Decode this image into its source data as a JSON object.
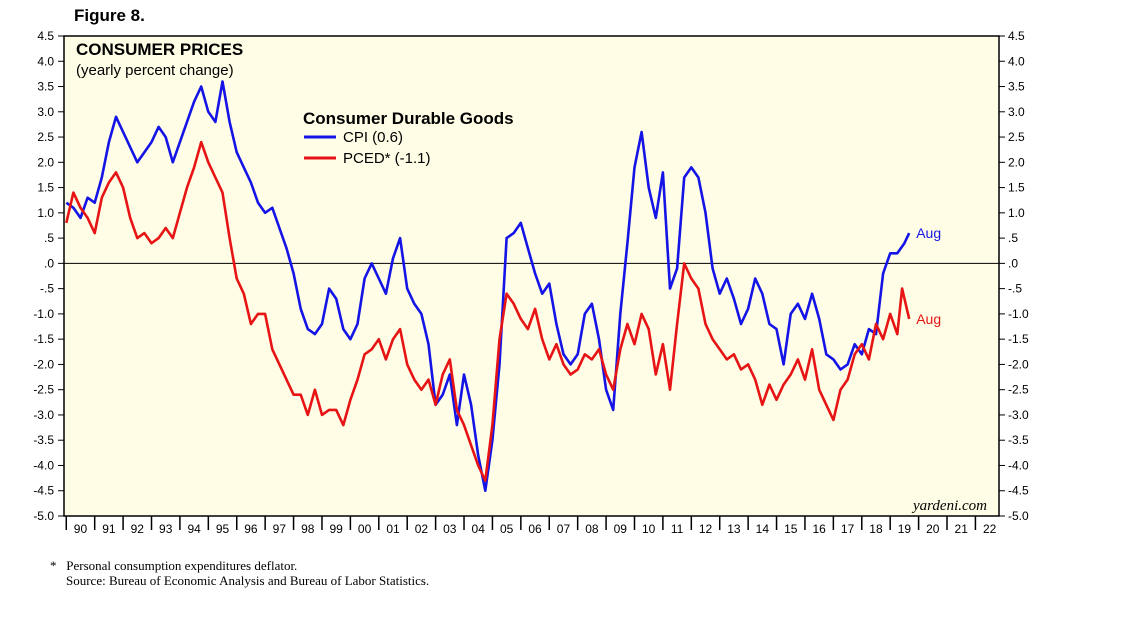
{
  "figure_label": "Figure 8.",
  "footnotes": {
    "marker": "*",
    "definition": "Personal consumption expenditures deflator.",
    "source": "Source: Bureau of Economic Analysis and Bureau of Labor Statistics."
  },
  "colors": {
    "background": "#fffde6",
    "cpi": "#1414e6",
    "pced": "#e61414",
    "axis": "#000000"
  },
  "chart_data": {
    "type": "line",
    "title": "CONSUMER PRICES",
    "subtitle": "(yearly percent change)",
    "legend_title": "Consumer Durable Goods",
    "watermark": "yardeni.com",
    "ylim": [
      -5.0,
      4.5
    ],
    "y_ticks": [
      -5.0,
      -4.5,
      -4.0,
      -3.5,
      -3.0,
      -2.5,
      -2.0,
      -1.5,
      -1.0,
      -0.5,
      0.0,
      0.5,
      1.0,
      1.5,
      2.0,
      2.5,
      3.0,
      3.5,
      4.0,
      4.5
    ],
    "y_tick_labels": [
      "-5.0",
      "-4.5",
      "-4.0",
      "-3.5",
      "-3.0",
      "-2.5",
      "-2.0",
      "-1.5",
      "-1.0",
      "-.5",
      ".0",
      ".5",
      "1.0",
      "1.5",
      "2.0",
      "2.5",
      "3.0",
      "3.5",
      "4.0",
      "4.5"
    ],
    "xlim": [
      1989.92,
      2022.83
    ],
    "x_tick_labels": [
      "90",
      "91",
      "92",
      "93",
      "94",
      "95",
      "96",
      "97",
      "98",
      "99",
      "00",
      "01",
      "02",
      "03",
      "04",
      "05",
      "06",
      "07",
      "08",
      "09",
      "10",
      "11",
      "12",
      "13",
      "14",
      "15",
      "16",
      "17",
      "18",
      "19",
      "20",
      "21",
      "22"
    ],
    "reference_line": 0.0,
    "series": [
      {
        "name": "CPI (0.6)",
        "color": "#1414e6",
        "end_label": "Aug",
        "points": [
          [
            1990.0,
            1.2
          ],
          [
            1990.25,
            1.1
          ],
          [
            1990.5,
            0.9
          ],
          [
            1990.75,
            1.3
          ],
          [
            1991.0,
            1.2
          ],
          [
            1991.25,
            1.7
          ],
          [
            1991.5,
            2.4
          ],
          [
            1991.75,
            2.9
          ],
          [
            1992.0,
            2.6
          ],
          [
            1992.25,
            2.3
          ],
          [
            1992.5,
            2.0
          ],
          [
            1992.75,
            2.2
          ],
          [
            1993.0,
            2.4
          ],
          [
            1993.25,
            2.7
          ],
          [
            1993.5,
            2.5
          ],
          [
            1993.75,
            2.0
          ],
          [
            1994.0,
            2.4
          ],
          [
            1994.25,
            2.8
          ],
          [
            1994.5,
            3.2
          ],
          [
            1994.75,
            3.5
          ],
          [
            1995.0,
            3.0
          ],
          [
            1995.25,
            2.8
          ],
          [
            1995.5,
            3.6
          ],
          [
            1995.75,
            2.8
          ],
          [
            1996.0,
            2.2
          ],
          [
            1996.25,
            1.9
          ],
          [
            1996.5,
            1.6
          ],
          [
            1996.75,
            1.2
          ],
          [
            1997.0,
            1.0
          ],
          [
            1997.25,
            1.1
          ],
          [
            1997.5,
            0.7
          ],
          [
            1997.75,
            0.3
          ],
          [
            1998.0,
            -0.2
          ],
          [
            1998.25,
            -0.9
          ],
          [
            1998.5,
            -1.3
          ],
          [
            1998.75,
            -1.4
          ],
          [
            1999.0,
            -1.2
          ],
          [
            1999.25,
            -0.5
          ],
          [
            1999.5,
            -0.7
          ],
          [
            1999.75,
            -1.3
          ],
          [
            2000.0,
            -1.5
          ],
          [
            2000.25,
            -1.2
          ],
          [
            2000.5,
            -0.3
          ],
          [
            2000.75,
            0.0
          ],
          [
            2001.0,
            -0.3
          ],
          [
            2001.25,
            -0.6
          ],
          [
            2001.5,
            0.1
          ],
          [
            2001.75,
            0.5
          ],
          [
            2002.0,
            -0.5
          ],
          [
            2002.25,
            -0.8
          ],
          [
            2002.5,
            -1.0
          ],
          [
            2002.75,
            -1.6
          ],
          [
            2003.0,
            -2.8
          ],
          [
            2003.25,
            -2.6
          ],
          [
            2003.5,
            -2.2
          ],
          [
            2003.75,
            -3.2
          ],
          [
            2004.0,
            -2.2
          ],
          [
            2004.25,
            -2.8
          ],
          [
            2004.5,
            -3.8
          ],
          [
            2004.75,
            -4.5
          ],
          [
            2005.0,
            -3.5
          ],
          [
            2005.25,
            -2.0
          ],
          [
            2005.5,
            0.5
          ],
          [
            2005.75,
            0.6
          ],
          [
            2006.0,
            0.8
          ],
          [
            2006.25,
            0.3
          ],
          [
            2006.5,
            -0.2
          ],
          [
            2006.75,
            -0.6
          ],
          [
            2007.0,
            -0.4
          ],
          [
            2007.25,
            -1.2
          ],
          [
            2007.5,
            -1.8
          ],
          [
            2007.75,
            -2.0
          ],
          [
            2008.0,
            -1.8
          ],
          [
            2008.25,
            -1.0
          ],
          [
            2008.5,
            -0.8
          ],
          [
            2008.75,
            -1.5
          ],
          [
            2009.0,
            -2.5
          ],
          [
            2009.25,
            -2.9
          ],
          [
            2009.5,
            -1.0
          ],
          [
            2009.75,
            0.4
          ],
          [
            2010.0,
            1.9
          ],
          [
            2010.25,
            2.6
          ],
          [
            2010.5,
            1.5
          ],
          [
            2010.75,
            0.9
          ],
          [
            2011.0,
            1.8
          ],
          [
            2011.25,
            -0.5
          ],
          [
            2011.5,
            -0.1
          ],
          [
            2011.75,
            1.7
          ],
          [
            2012.0,
            1.9
          ],
          [
            2012.25,
            1.7
          ],
          [
            2012.5,
            1.0
          ],
          [
            2012.75,
            -0.1
          ],
          [
            2013.0,
            -0.6
          ],
          [
            2013.25,
            -0.3
          ],
          [
            2013.5,
            -0.7
          ],
          [
            2013.75,
            -1.2
          ],
          [
            2014.0,
            -0.9
          ],
          [
            2014.25,
            -0.3
          ],
          [
            2014.5,
            -0.6
          ],
          [
            2014.75,
            -1.2
          ],
          [
            2015.0,
            -1.3
          ],
          [
            2015.25,
            -2.0
          ],
          [
            2015.5,
            -1.0
          ],
          [
            2015.75,
            -0.8
          ],
          [
            2016.0,
            -1.1
          ],
          [
            2016.25,
            -0.6
          ],
          [
            2016.5,
            -1.1
          ],
          [
            2016.75,
            -1.8
          ],
          [
            2017.0,
            -1.9
          ],
          [
            2017.25,
            -2.1
          ],
          [
            2017.5,
            -2.0
          ],
          [
            2017.75,
            -1.6
          ],
          [
            2018.0,
            -1.8
          ],
          [
            2018.25,
            -1.3
          ],
          [
            2018.5,
            -1.4
          ],
          [
            2018.75,
            -0.2
          ],
          [
            2019.0,
            0.2
          ],
          [
            2019.25,
            0.2
          ],
          [
            2019.5,
            0.4
          ],
          [
            2019.67,
            0.6
          ]
        ]
      },
      {
        "name": "PCED* (-1.1)",
        "color": "#e61414",
        "end_label": "Aug",
        "points": [
          [
            1990.0,
            0.8
          ],
          [
            1990.25,
            1.4
          ],
          [
            1990.5,
            1.1
          ],
          [
            1990.75,
            0.9
          ],
          [
            1991.0,
            0.6
          ],
          [
            1991.25,
            1.3
          ],
          [
            1991.5,
            1.6
          ],
          [
            1991.75,
            1.8
          ],
          [
            1992.0,
            1.5
          ],
          [
            1992.25,
            0.9
          ],
          [
            1992.5,
            0.5
          ],
          [
            1992.75,
            0.6
          ],
          [
            1993.0,
            0.4
          ],
          [
            1993.25,
            0.5
          ],
          [
            1993.5,
            0.7
          ],
          [
            1993.75,
            0.5
          ],
          [
            1994.0,
            1.0
          ],
          [
            1994.25,
            1.5
          ],
          [
            1994.5,
            1.9
          ],
          [
            1994.75,
            2.4
          ],
          [
            1995.0,
            2.0
          ],
          [
            1995.25,
            1.7
          ],
          [
            1995.5,
            1.4
          ],
          [
            1995.75,
            0.5
          ],
          [
            1996.0,
            -0.3
          ],
          [
            1996.25,
            -0.6
          ],
          [
            1996.5,
            -1.2
          ],
          [
            1996.75,
            -1.0
          ],
          [
            1997.0,
            -1.0
          ],
          [
            1997.25,
            -1.7
          ],
          [
            1997.5,
            -2.0
          ],
          [
            1997.75,
            -2.3
          ],
          [
            1998.0,
            -2.6
          ],
          [
            1998.25,
            -2.6
          ],
          [
            1998.5,
            -3.0
          ],
          [
            1998.75,
            -2.5
          ],
          [
            1999.0,
            -3.0
          ],
          [
            1999.25,
            -2.9
          ],
          [
            1999.5,
            -2.9
          ],
          [
            1999.75,
            -3.2
          ],
          [
            2000.0,
            -2.7
          ],
          [
            2000.25,
            -2.3
          ],
          [
            2000.5,
            -1.8
          ],
          [
            2000.75,
            -1.7
          ],
          [
            2001.0,
            -1.5
          ],
          [
            2001.25,
            -1.9
          ],
          [
            2001.5,
            -1.5
          ],
          [
            2001.75,
            -1.3
          ],
          [
            2002.0,
            -2.0
          ],
          [
            2002.25,
            -2.3
          ],
          [
            2002.5,
            -2.5
          ],
          [
            2002.75,
            -2.3
          ],
          [
            2003.0,
            -2.8
          ],
          [
            2003.25,
            -2.2
          ],
          [
            2003.5,
            -1.9
          ],
          [
            2003.75,
            -2.9
          ],
          [
            2004.0,
            -3.2
          ],
          [
            2004.25,
            -3.6
          ],
          [
            2004.5,
            -4.0
          ],
          [
            2004.75,
            -4.3
          ],
          [
            2005.0,
            -3.2
          ],
          [
            2005.25,
            -1.5
          ],
          [
            2005.5,
            -0.6
          ],
          [
            2005.75,
            -0.8
          ],
          [
            2006.0,
            -1.1
          ],
          [
            2006.25,
            -1.3
          ],
          [
            2006.5,
            -0.9
          ],
          [
            2006.75,
            -1.5
          ],
          [
            2007.0,
            -1.9
          ],
          [
            2007.25,
            -1.6
          ],
          [
            2007.5,
            -2.0
          ],
          [
            2007.75,
            -2.2
          ],
          [
            2008.0,
            -2.1
          ],
          [
            2008.25,
            -1.8
          ],
          [
            2008.5,
            -1.9
          ],
          [
            2008.75,
            -1.7
          ],
          [
            2009.0,
            -2.2
          ],
          [
            2009.25,
            -2.5
          ],
          [
            2009.5,
            -1.7
          ],
          [
            2009.75,
            -1.2
          ],
          [
            2010.0,
            -1.6
          ],
          [
            2010.25,
            -1.0
          ],
          [
            2010.5,
            -1.3
          ],
          [
            2010.75,
            -2.2
          ],
          [
            2011.0,
            -1.6
          ],
          [
            2011.25,
            -2.5
          ],
          [
            2011.5,
            -1.2
          ],
          [
            2011.75,
            0.0
          ],
          [
            2012.0,
            -0.3
          ],
          [
            2012.25,
            -0.5
          ],
          [
            2012.5,
            -1.2
          ],
          [
            2012.75,
            -1.5
          ],
          [
            2013.0,
            -1.7
          ],
          [
            2013.25,
            -1.9
          ],
          [
            2013.5,
            -1.8
          ],
          [
            2013.75,
            -2.1
          ],
          [
            2014.0,
            -2.0
          ],
          [
            2014.25,
            -2.3
          ],
          [
            2014.5,
            -2.8
          ],
          [
            2014.75,
            -2.4
          ],
          [
            2015.0,
            -2.7
          ],
          [
            2015.25,
            -2.4
          ],
          [
            2015.5,
            -2.2
          ],
          [
            2015.75,
            -1.9
          ],
          [
            2016.0,
            -2.3
          ],
          [
            2016.25,
            -1.7
          ],
          [
            2016.5,
            -2.5
          ],
          [
            2016.75,
            -2.8
          ],
          [
            2017.0,
            -3.1
          ],
          [
            2017.25,
            -2.5
          ],
          [
            2017.5,
            -2.3
          ],
          [
            2017.75,
            -1.8
          ],
          [
            2018.0,
            -1.6
          ],
          [
            2018.25,
            -1.9
          ],
          [
            2018.5,
            -1.2
          ],
          [
            2018.75,
            -1.5
          ],
          [
            2019.0,
            -1.0
          ],
          [
            2019.25,
            -1.4
          ],
          [
            2019.42,
            -0.5
          ],
          [
            2019.67,
            -1.1
          ]
        ]
      }
    ]
  }
}
